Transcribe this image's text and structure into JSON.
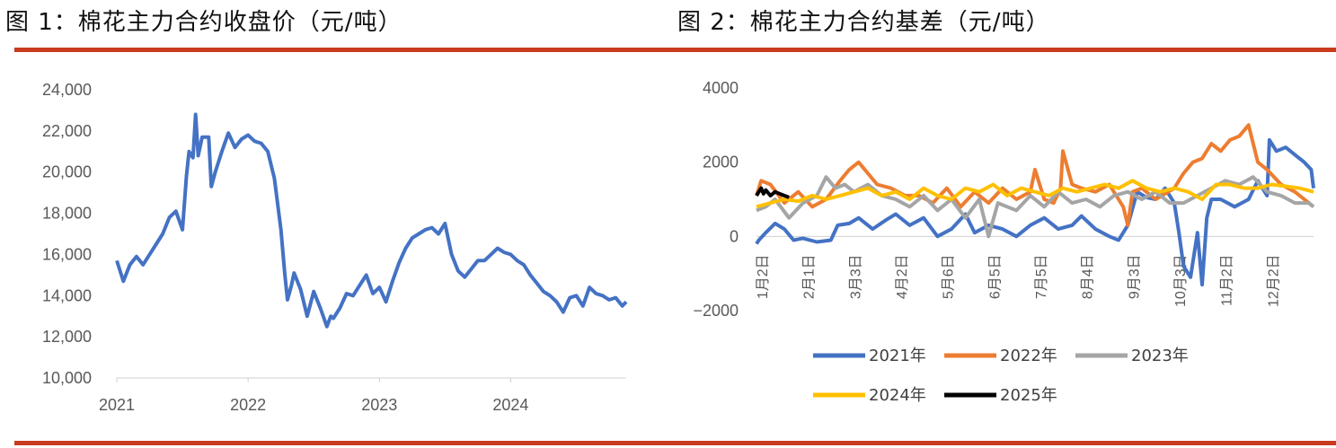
{
  "titles": {
    "fig1": "图 1：棉花主力合约收盘价（元/吨）",
    "fig2": "图 2：棉花主力合约基差（元/吨）"
  },
  "chart_data": [
    {
      "type": "line",
      "title": "图 1：棉花主力合约收盘价（元/吨）",
      "xlabel": "",
      "ylabel": "",
      "ylim": [
        10000,
        24000
      ],
      "y_ticks": [
        "24,000",
        "22,000",
        "20,000",
        "18,000",
        "16,000",
        "14,000",
        "12,000",
        "10,000"
      ],
      "x_tick_labels": [
        "2021",
        "2022",
        "2023",
        "2024"
      ],
      "grid": false,
      "color": "#4472C4",
      "series": [
        {
          "x": [
            2021.0,
            2021.05,
            2021.1,
            2021.15,
            2021.2,
            2021.25,
            2021.3,
            2021.35,
            2021.4,
            2021.45,
            2021.5,
            2021.53,
            2021.55,
            2021.58,
            2021.6,
            2021.62,
            2021.65,
            2021.7,
            2021.72,
            2021.75,
            2021.8,
            2021.85,
            2021.9,
            2021.95,
            2022.0,
            2022.05,
            2022.1,
            2022.15,
            2022.2,
            2022.25,
            2022.28,
            2022.3,
            2022.33,
            2022.35,
            2022.4,
            2022.45,
            2022.5,
            2022.55,
            2022.6,
            2022.63,
            2022.65,
            2022.7,
            2022.75,
            2022.8,
            2022.85,
            2022.9,
            2022.95,
            2023.0,
            2023.05,
            2023.1,
            2023.15,
            2023.2,
            2023.25,
            2023.3,
            2023.35,
            2023.4,
            2023.45,
            2023.5,
            2023.55,
            2023.6,
            2023.65,
            2023.7,
            2023.75,
            2023.8,
            2023.85,
            2023.9,
            2023.95,
            2024.0,
            2024.05,
            2024.1,
            2024.15,
            2024.2,
            2024.25,
            2024.3,
            2024.35,
            2024.4,
            2024.45,
            2024.5,
            2024.55,
            2024.6,
            2024.65,
            2024.7,
            2024.75,
            2024.8,
            2024.85,
            2024.88
          ],
          "y": [
            15700,
            14700,
            15500,
            15900,
            15500,
            16000,
            16500,
            17000,
            17800,
            18100,
            17200,
            19800,
            21000,
            20700,
            22800,
            20800,
            21700,
            21700,
            19300,
            20000,
            21000,
            21900,
            21200,
            21600,
            21800,
            21500,
            21400,
            21000,
            19700,
            17200,
            15000,
            13800,
            14500,
            15100,
            14300,
            13000,
            14200,
            13400,
            12500,
            13000,
            12900,
            13400,
            14100,
            14000,
            14500,
            15000,
            14100,
            14400,
            13700,
            14700,
            15600,
            16300,
            16800,
            17000,
            17200,
            17300,
            17000,
            17500,
            16000,
            15200,
            14900,
            15300,
            15700,
            15700,
            16000,
            16300,
            16100,
            16000,
            15700,
            15500,
            15000,
            14600,
            14200,
            14000,
            13700,
            13200,
            13900,
            14000,
            13500,
            14400,
            14100,
            14000,
            13800,
            13900,
            13500,
            13700
          ]
        }
      ]
    },
    {
      "type": "line",
      "title": "图 2：棉花主力合约基差（元/吨）",
      "xlabel": "",
      "ylabel": "",
      "ylim": [
        -2000,
        4000
      ],
      "y_ticks": [
        "4000",
        "2000",
        "0",
        "−2000"
      ],
      "categories": [
        "1月2日",
        "2月1日",
        "3月3日",
        "4月2日",
        "5月6日",
        "6月5日",
        "7月5日",
        "8月4日",
        "9月3日",
        "10月3日",
        "11月2日",
        "12月2日"
      ],
      "grid": false,
      "legend_position": "bottom",
      "series": [
        {
          "name": "2021年",
          "color": "#4472C4",
          "x": [
            0,
            0.05,
            0.2,
            0.4,
            0.6,
            0.8,
            1.0,
            1.3,
            1.6,
            1.75,
            2.0,
            2.2,
            2.5,
            2.8,
            3.0,
            3.3,
            3.6,
            3.9,
            4.2,
            4.5,
            4.7,
            5.0,
            5.3,
            5.6,
            5.9,
            6.2,
            6.5,
            6.8,
            7.0,
            7.3,
            7.6,
            7.8,
            8.0,
            8.2,
            8.4,
            8.6,
            8.8,
            9.0,
            9.1,
            9.2,
            9.35,
            9.5,
            9.6,
            9.7,
            9.8,
            10.0,
            10.3,
            10.6,
            10.8,
            11.0,
            11.05,
            11.2,
            11.4,
            11.6,
            11.8,
            11.95,
            12.0
          ],
          "y": [
            -200,
            -100,
            100,
            350,
            200,
            -100,
            -50,
            -150,
            -100,
            300,
            350,
            500,
            200,
            450,
            600,
            300,
            500,
            0,
            200,
            600,
            100,
            300,
            200,
            0,
            300,
            500,
            200,
            300,
            550,
            200,
            0,
            -100,
            300,
            1200,
            1050,
            1000,
            1300,
            900,
            100,
            -800,
            -1100,
            100,
            -1300,
            500,
            1000,
            1000,
            800,
            1000,
            1500,
            1100,
            2600,
            2300,
            2400,
            2200,
            2000,
            1800,
            1300
          ]
        },
        {
          "name": "2022年",
          "color": "#ED7D31",
          "x": [
            0,
            0.1,
            0.3,
            0.6,
            0.9,
            1.2,
            1.5,
            1.8,
            2.0,
            2.2,
            2.4,
            2.6,
            2.9,
            3.2,
            3.5,
            3.8,
            4.1,
            4.4,
            4.7,
            5.0,
            5.3,
            5.6,
            5.9,
            6.0,
            6.2,
            6.4,
            6.55,
            6.6,
            6.8,
            7.0,
            7.3,
            7.6,
            7.8,
            7.9,
            8.0,
            8.1,
            8.3,
            8.6,
            9.0,
            9.2,
            9.4,
            9.6,
            9.8,
            10.0,
            10.2,
            10.4,
            10.6,
            10.8,
            11.0,
            11.3,
            11.6,
            11.9,
            12.0
          ],
          "y": [
            1100,
            1500,
            1400,
            900,
            1200,
            800,
            1000,
            1500,
            1800,
            2000,
            1700,
            1400,
            1300,
            1100,
            1100,
            900,
            1300,
            800,
            1200,
            900,
            1300,
            1000,
            1200,
            1800,
            1000,
            900,
            1300,
            2300,
            1400,
            1300,
            1200,
            1400,
            1000,
            800,
            300,
            1200,
            1300,
            1000,
            1300,
            1700,
            2000,
            2100,
            2500,
            2300,
            2600,
            2700,
            3000,
            2000,
            1800,
            1400,
            1200,
            900,
            800
          ]
        },
        {
          "name": "2023年",
          "color": "#A5A5A5",
          "x": [
            0,
            0.2,
            0.4,
            0.7,
            1.0,
            1.3,
            1.5,
            1.7,
            1.9,
            2.1,
            2.4,
            2.7,
            3.0,
            3.3,
            3.6,
            3.9,
            4.2,
            4.5,
            4.8,
            5.0,
            5.2,
            5.4,
            5.6,
            5.9,
            6.2,
            6.5,
            6.8,
            7.1,
            7.4,
            7.7,
            8.0,
            8.3,
            8.6,
            8.9,
            9.2,
            9.5,
            9.8,
            10.1,
            10.4,
            10.7,
            11.0,
            11.3,
            11.6,
            11.9,
            12.0
          ],
          "y": [
            700,
            800,
            1000,
            500,
            900,
            1100,
            1600,
            1300,
            1400,
            1200,
            1400,
            1100,
            1000,
            800,
            1100,
            700,
            1000,
            500,
            1000,
            0,
            900,
            800,
            700,
            1100,
            800,
            1200,
            900,
            1000,
            800,
            1100,
            1200,
            1000,
            1200,
            900,
            900,
            1100,
            1300,
            1500,
            1400,
            1600,
            1200,
            1100,
            900,
            900,
            800
          ]
        },
        {
          "name": "2024年",
          "color": "#FFC000",
          "x": [
            0,
            0.3,
            0.6,
            0.9,
            1.2,
            1.5,
            1.8,
            2.1,
            2.4,
            2.7,
            3.0,
            3.3,
            3.6,
            3.9,
            4.2,
            4.5,
            4.8,
            5.1,
            5.4,
            5.7,
            6.0,
            6.3,
            6.6,
            6.9,
            7.2,
            7.5,
            7.8,
            8.1,
            8.4,
            8.7,
            9.0,
            9.3,
            9.6,
            9.9,
            10.2,
            10.5,
            10.8,
            11.1,
            11.4,
            11.7,
            12.0
          ],
          "y": [
            800,
            900,
            1000,
            950,
            1100,
            1000,
            1100,
            1200,
            1300,
            1100,
            1200,
            1000,
            1300,
            1100,
            1000,
            1300,
            1200,
            1400,
            1100,
            1300,
            1200,
            1100,
            1300,
            1200,
            1300,
            1400,
            1300,
            1500,
            1300,
            1200,
            1300,
            1200,
            1000,
            1400,
            1400,
            1300,
            1300,
            1400,
            1350,
            1300,
            1200
          ]
        },
        {
          "name": "2025年",
          "color": "#000000",
          "x": [
            0,
            0.05,
            0.1,
            0.15,
            0.2,
            0.3,
            0.4,
            0.5,
            0.6,
            0.7
          ],
          "y": [
            1100,
            1200,
            1300,
            1150,
            1250,
            1100,
            1200,
            1150,
            1100,
            1050
          ]
        }
      ]
    }
  ]
}
